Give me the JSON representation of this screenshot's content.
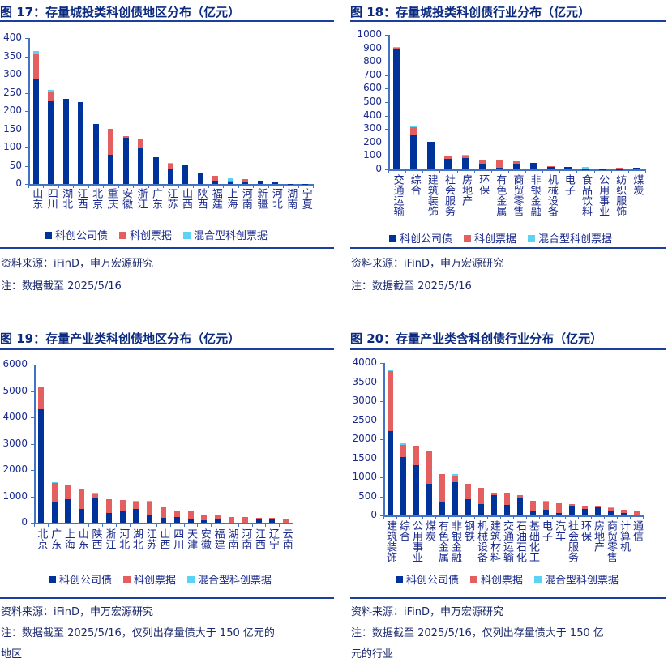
{
  "colors": {
    "kc_bond": "#003399",
    "kc_note": "#E46060",
    "mixed_note": "#5BD3F5"
  },
  "panels": [
    {
      "title": "图 17：存量城投类科创债地区分布（亿元）",
      "source": "资料来源：iFinD，申万宏源研究",
      "note": "注：数据截至 2025/5/16",
      "note2": ""
    },
    {
      "title": "图 18：存量城投类科创债行业分布（亿元）",
      "source": "资料来源：iFinD，申万宏源研究",
      "note": "注：数据截至 2025/5/16",
      "note2": ""
    },
    {
      "title": "图 19：存量产业类科创债地区分布（亿元）",
      "source": "资料来源：iFinD，申万宏源研究",
      "note": "注：数据截至 2025/5/16，仅列出存量债大于 150 亿元的",
      "note2": "地区"
    },
    {
      "title": "图 20：存量产业类含科创债行业分布（亿元）",
      "source": "资料来源：iFinD，申万宏源研究",
      "note": "注：数据截至 2025/5/16，仅列出存量债大于 150 亿",
      "note2": "元的行业"
    }
  ],
  "chart_data": [
    {
      "type": "bar",
      "stacked": true,
      "ylim": [
        0,
        400
      ],
      "yticks": [
        0,
        50,
        100,
        150,
        200,
        250,
        300,
        350,
        400
      ],
      "legend": "bottom",
      "categories": [
        "山东",
        "四川",
        "湖北",
        "江西",
        "北京",
        "重庆",
        "安徽",
        "浙江",
        "广东",
        "江苏",
        "山西",
        "陕西",
        "福建",
        "上海",
        "河南",
        "新疆",
        "河北",
        "湖南",
        "宁夏"
      ],
      "series": [
        {
          "name": "科创公司债",
          "values": [
            289,
            227,
            233,
            225,
            164,
            80,
            126,
            97,
            73,
            42,
            53,
            28,
            8,
            4,
            4,
            8,
            4,
            0.5,
            0.3
          ]
        },
        {
          "name": "科创票据",
          "values": [
            66,
            27,
            0,
            0,
            0,
            71,
            5,
            25,
            0,
            13,
            0,
            0,
            14,
            6,
            9,
            0,
            0,
            0,
            0
          ]
        },
        {
          "name": "混合型科创票据",
          "values": [
            10,
            4,
            0,
            0,
            0,
            0,
            0,
            0,
            0,
            2,
            0,
            0,
            0,
            5,
            0,
            0,
            0,
            0,
            0
          ]
        }
      ]
    },
    {
      "type": "bar",
      "stacked": true,
      "ylim": [
        0,
        1000
      ],
      "yticks": [
        0,
        100,
        200,
        300,
        400,
        500,
        600,
        700,
        800,
        900,
        1000
      ],
      "legend": "bottom",
      "categories": [
        "交通运输",
        "综合",
        "建筑装饰",
        "社会服务",
        "房地产",
        "环保",
        "有色金属",
        "商贸零售",
        "非银金融",
        "机械设备",
        "电子",
        "食品饮料",
        "公用事业",
        "纺织服饰",
        "煤炭"
      ],
      "series": [
        {
          "name": "科创公司债",
          "values": [
            893,
            252,
            204,
            77,
            83,
            40,
            10,
            40,
            46,
            16,
            16,
            2,
            1,
            1,
            10
          ]
        },
        {
          "name": "科创票据",
          "values": [
            12,
            60,
            0,
            24,
            12,
            25,
            55,
            18,
            0,
            6,
            0,
            0,
            0,
            9,
            0
          ]
        },
        {
          "name": "混合型科创票据",
          "values": [
            6,
            13,
            0,
            0,
            12,
            0,
            0,
            0,
            0,
            0,
            0,
            14,
            0,
            0,
            0
          ]
        }
      ]
    },
    {
      "type": "bar",
      "stacked": true,
      "ylim": [
        0,
        6000
      ],
      "yticks": [
        0,
        1000,
        2000,
        3000,
        4000,
        5000,
        6000
      ],
      "legend": "bottom",
      "categories": [
        "北京",
        "广东",
        "上海",
        "山东",
        "陕西",
        "浙江",
        "河北",
        "湖北",
        "江苏",
        "山西",
        "四川",
        "天津",
        "安徽",
        "福建",
        "湖南",
        "河南",
        "江西",
        "辽宁",
        "云南"
      ],
      "series": [
        {
          "name": "科创公司债",
          "values": [
            4304,
            808,
            900,
            532,
            930,
            378,
            440,
            532,
            286,
            194,
            225,
            164,
            102,
            164,
            0,
            0,
            133,
            133,
            0
          ]
        },
        {
          "name": "科创票据",
          "values": [
            860,
            705,
            521,
            767,
            184,
            522,
            429,
            276,
            491,
            399,
            245,
            306,
            184,
            122,
            225,
            225,
            61,
            61,
            164
          ]
        },
        {
          "name": "混合型科创票据",
          "values": [
            0,
            31,
            31,
            0,
            31,
            0,
            0,
            30,
            61,
            0,
            0,
            0,
            31,
            31,
            0,
            0,
            0,
            0,
            0
          ]
        }
      ]
    },
    {
      "type": "bar",
      "stacked": true,
      "ylim": [
        0,
        4000
      ],
      "yticks": [
        0,
        500,
        1000,
        1500,
        2000,
        2500,
        3000,
        3500,
        4000
      ],
      "legend": "bottom",
      "categories": [
        "建筑装饰",
        "综合",
        "公用事业",
        "煤炭",
        "有色金属",
        "非银金融",
        "钢铁",
        "机械设备",
        "建筑材料",
        "交通运输",
        "石油石化",
        "基础化工",
        "电子",
        "汽车",
        "社会服务",
        "环保",
        "房地产",
        "商贸零售",
        "计算机",
        "通信"
      ],
      "series": [
        {
          "name": "科创公司债",
          "values": [
            2220,
            1539,
            1326,
            837,
            348,
            879,
            433,
            305,
            539,
            284,
            454,
            135,
            156,
            71,
            241,
            177,
            220,
            135,
            71,
            28
          ]
        },
        {
          "name": "科创票据",
          "values": [
            1574,
            319,
            511,
            872,
            744,
            171,
            404,
            425,
            64,
            319,
            85,
            255,
            213,
            255,
            64,
            85,
            21,
            64,
            85,
            85
          ]
        },
        {
          "name": "混合型科创票据",
          "values": [
            22,
            43,
            0,
            0,
            0,
            42,
            0,
            0,
            0,
            0,
            0,
            0,
            21,
            0,
            0,
            0,
            21,
            21,
            0,
            0
          ]
        }
      ]
    }
  ]
}
